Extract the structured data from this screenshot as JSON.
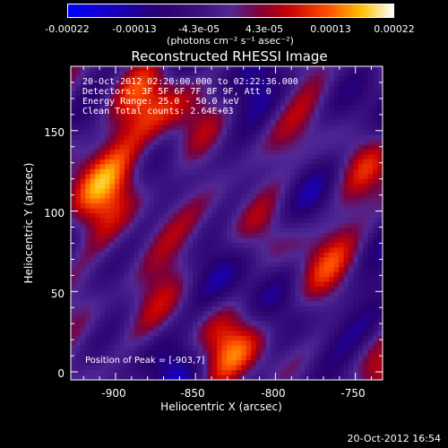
{
  "chart_data": {
    "type": "heatmap",
    "title": "Reconstructed RHESSI Image",
    "xlabel": "Heliocentric X (arcsec)",
    "ylabel": "Heliocentric Y (arcsec)",
    "xlim": [
      -928,
      -733
    ],
    "ylim": [
      -5,
      190
    ],
    "x_ticks": [
      -900,
      -850,
      -800,
      -750
    ],
    "y_ticks": [
      0,
      50,
      100,
      150
    ],
    "colorbar": {
      "ticks": [
        "-0.00022",
        "-0.00013",
        "-4.3e-05",
        "4.3e-05",
        "0.00013",
        "0.00022"
      ],
      "unit": "(photons cm⁻² s⁻¹ asec⁻²)",
      "range": [
        -0.00022,
        0.00022
      ]
    },
    "annotations": [
      "20-Oct-2012 02:20:00.000 to 02:22:36.000",
      "Detectors: 3F 5F 6F 7F 8F 9F, Att 0",
      "Energy Range: 25.0 - 50.0 keV",
      "Clean    Total counts: 2.64E+03"
    ],
    "peak_label": "Position of Peak = [-903,7]",
    "peak": [
      -903,
      7
    ]
  },
  "timestamp": "20-Oct-2012 16:54",
  "colors": {
    "background": "#000000",
    "foreground": "#ffffff"
  }
}
